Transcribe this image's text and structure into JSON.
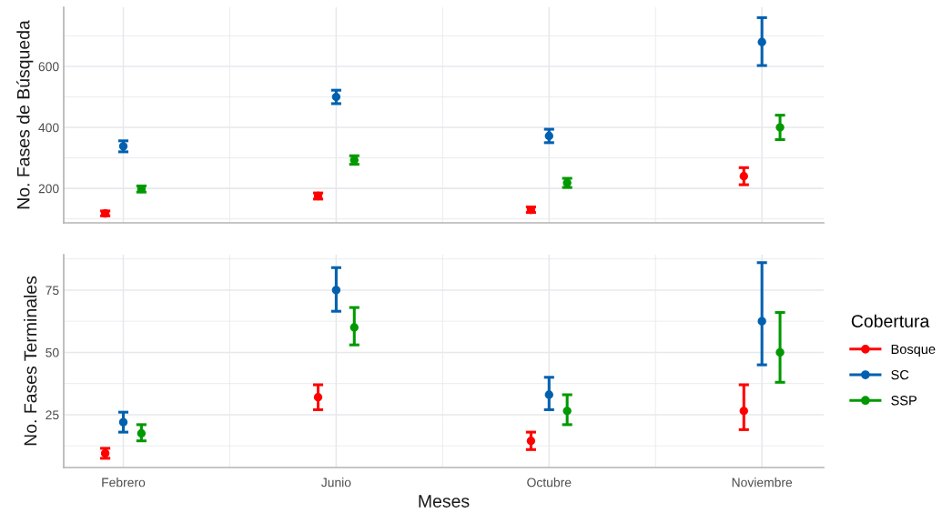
{
  "chart_data": [
    {
      "type": "scatter",
      "ylabel": "No. Fases de Búsqueda",
      "categories": [
        null,
        null,
        null,
        null
      ],
      "ylim": [
        87,
        794
      ],
      "yticks": [
        200,
        400,
        600
      ],
      "grid": true,
      "marker": "circle",
      "tick_labels": "y",
      "legend": false,
      "series": [
        {
          "color": "#ff0000",
          "values": [
            118,
            175,
            130,
            240
          ],
          "errors": [
            [
              110,
              126
            ],
            [
              165,
              185
            ],
            [
              121,
              139
            ],
            [
              212,
              268
            ]
          ]
        },
        {
          "color": "#0060b0",
          "values": [
            338,
            500,
            372,
            680
          ],
          "errors": [
            [
              320,
              356
            ],
            [
              478,
              522
            ],
            [
              350,
              394
            ],
            [
              603,
              760
            ]
          ]
        },
        {
          "color": "#009900",
          "values": [
            198,
            293,
            218,
            400
          ],
          "errors": [
            [
              188,
              208
            ],
            [
              279,
              307
            ],
            [
              203,
              233
            ],
            [
              360,
              440
            ]
          ]
        }
      ]
    },
    {
      "type": "scatter",
      "xlabel": "Meses",
      "ylabel": "No. Fases Terminales",
      "categories": [
        "Febrero",
        "Junio",
        "Octubre",
        "Noviembre"
      ],
      "ylim": [
        3.8,
        89.2
      ],
      "yticks": [
        25,
        50,
        75
      ],
      "grid": true,
      "marker": "circle",
      "legend": "right",
      "legend_title": "Cobertura",
      "series": [
        {
          "name": "Bosque",
          "color": "#ff0000",
          "values": [
            9.5,
            32,
            14.5,
            26.5
          ],
          "errors": [
            [
              7.5,
              11.5
            ],
            [
              27,
              37
            ],
            [
              11,
              18
            ],
            [
              19,
              37
            ]
          ]
        },
        {
          "name": "SC",
          "color": "#0060b0",
          "values": [
            22,
            75,
            33,
            62.5
          ],
          "errors": [
            [
              18,
              26
            ],
            [
              66.5,
              84
            ],
            [
              27,
              40
            ],
            [
              45,
              86
            ]
          ]
        },
        {
          "name": "SSP",
          "color": "#009900",
          "values": [
            17.5,
            60,
            26.5,
            50
          ],
          "errors": [
            [
              14.5,
              21
            ],
            [
              53,
              68
            ],
            [
              21,
              33
            ],
            [
              38,
              66
            ]
          ]
        }
      ]
    }
  ]
}
